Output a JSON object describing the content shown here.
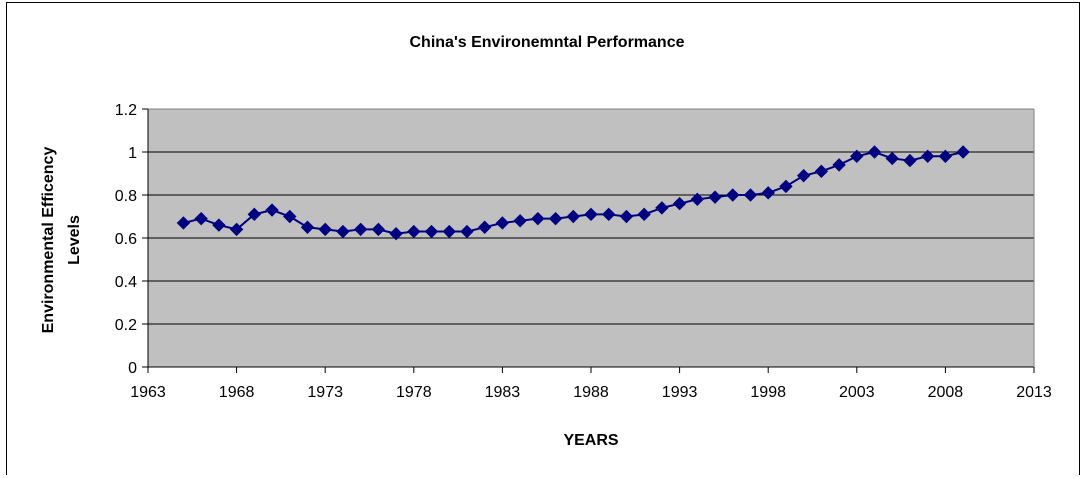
{
  "chart_data": {
    "type": "line",
    "title": "China's Environemntal Performance",
    "xlabel": "YEARS",
    "ylabel_lines": [
      "Environmental Efficency",
      "Levels"
    ],
    "xlim": [
      1963,
      2013
    ],
    "ylim": [
      0,
      1.2
    ],
    "x_ticks": [
      1963,
      1968,
      1973,
      1978,
      1983,
      1988,
      1993,
      1998,
      2003,
      2008,
      2013
    ],
    "y_ticks": [
      0,
      0.2,
      0.4,
      0.6,
      0.8,
      1,
      1.2
    ],
    "grid": "horizontal",
    "legend": "none",
    "marker": "diamond",
    "colors": {
      "series": "#000080",
      "plot_bg": "#c0c0c0",
      "gridline": "#000000"
    },
    "series": [
      {
        "x": [
          1965,
          1966,
          1967,
          1968,
          1969,
          1970,
          1971,
          1972,
          1973,
          1974,
          1975,
          1976,
          1977,
          1978,
          1979,
          1980,
          1981,
          1982,
          1983,
          1984,
          1985,
          1986,
          1987,
          1988,
          1989,
          1990,
          1991,
          1992,
          1993,
          1994,
          1995,
          1996,
          1997,
          1998,
          1999,
          2000,
          2001,
          2002,
          2003,
          2004,
          2005,
          2006,
          2007,
          2008,
          2009
        ],
        "values": [
          0.67,
          0.69,
          0.66,
          0.64,
          0.71,
          0.73,
          0.7,
          0.65,
          0.64,
          0.63,
          0.64,
          0.64,
          0.62,
          0.63,
          0.63,
          0.63,
          0.63,
          0.65,
          0.67,
          0.68,
          0.69,
          0.69,
          0.7,
          0.71,
          0.71,
          0.7,
          0.71,
          0.74,
          0.76,
          0.78,
          0.79,
          0.8,
          0.8,
          0.81,
          0.84,
          0.89,
          0.91,
          0.94,
          0.98,
          1.0,
          0.97,
          0.96,
          0.98,
          0.98,
          1.0
        ]
      }
    ]
  }
}
